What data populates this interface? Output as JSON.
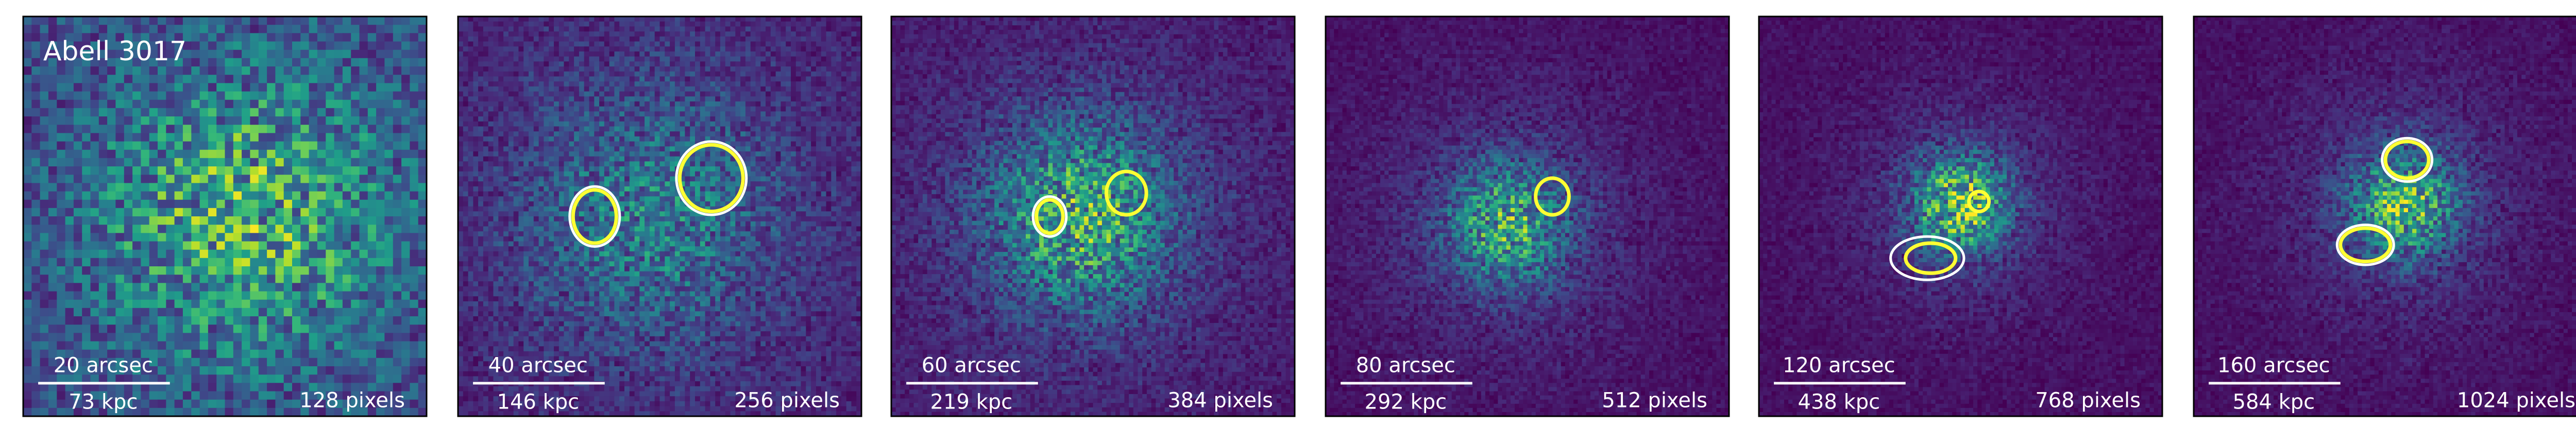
{
  "panels": [
    {
      "title": "Abell 3017",
      "angular_scale": "20 arcsec",
      "physical_scale": "73 kpc",
      "image_size": "128 pixels"
    },
    {
      "angular_scale": "40 arcsec",
      "physical_scale": "146 kpc",
      "image_size": "256 pixels"
    },
    {
      "angular_scale": "60 arcsec",
      "physical_scale": "219 kpc",
      "image_size": "384 pixels"
    },
    {
      "angular_scale": "80 arcsec",
      "physical_scale": "292 kpc",
      "image_size": "512 pixels"
    },
    {
      "angular_scale": "120 arcsec",
      "physical_scale": "438 kpc",
      "image_size": "768 pixels"
    },
    {
      "angular_scale": "160 arcsec",
      "physical_scale": "584 kpc",
      "image_size": "1024 pixels"
    }
  ]
}
